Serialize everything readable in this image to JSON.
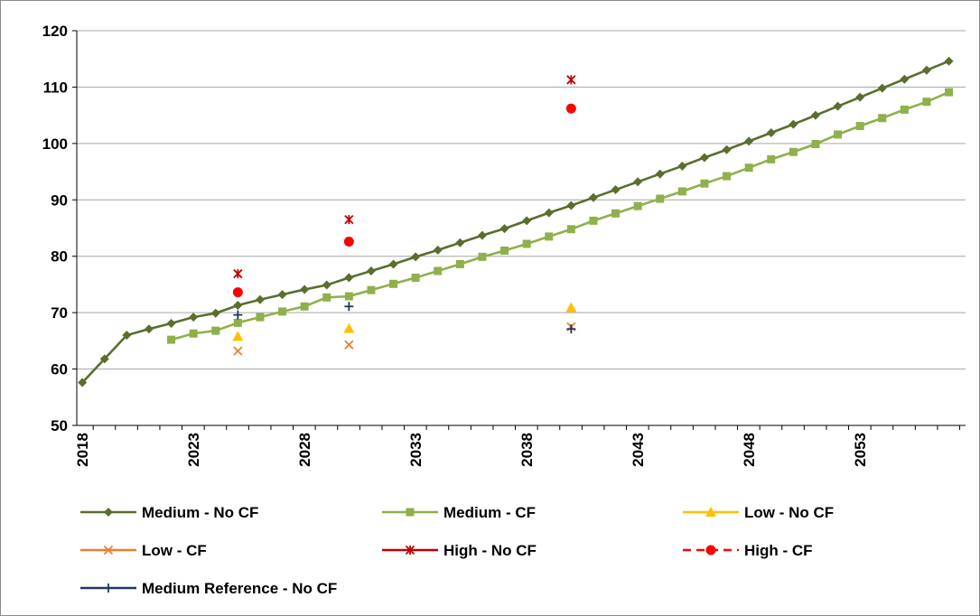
{
  "chart_data": {
    "type": "line",
    "title": "",
    "xlabel": "",
    "ylabel": "",
    "xlim": [
      2018,
      2057
    ],
    "ylim": [
      50,
      120
    ],
    "grid": true,
    "legend_position": "bottom",
    "yticks": [
      50,
      60,
      70,
      80,
      90,
      100,
      110,
      120
    ],
    "xticks": [
      2018,
      2023,
      2028,
      2033,
      2038,
      2043,
      2048,
      2053
    ],
    "colors": {
      "medium_no_cf": "#5a6e2d",
      "medium_cf": "#8fb04a",
      "low_no_cf": "#ffc000",
      "low_cf": "#ed7d31",
      "high_no_cf": "#c00000",
      "high_cf": "#ff0000",
      "medium_reference": "#1f3864"
    },
    "series": [
      {
        "name": "Medium - No CF",
        "marker": "diamond",
        "line": "solid",
        "color": "#5a6e2d",
        "x": [
          2018,
          2019,
          2020,
          2021,
          2022,
          2023,
          2024,
          2025,
          2026,
          2027,
          2028,
          2029,
          2030,
          2031,
          2032,
          2033,
          2034,
          2035,
          2036,
          2037,
          2038,
          2039,
          2040,
          2041,
          2042,
          2043,
          2044,
          2045,
          2046,
          2047,
          2048,
          2049,
          2050,
          2051,
          2052,
          2053,
          2054,
          2055,
          2056,
          2057
        ],
        "y": [
          57.6,
          61.8,
          66.0,
          67.1,
          68.1,
          69.2,
          69.9,
          71.3,
          72.3,
          73.2,
          74.1,
          74.9,
          76.2,
          77.4,
          78.6,
          79.9,
          81.1,
          82.4,
          83.7,
          84.9,
          86.3,
          87.7,
          89.0,
          90.4,
          91.8,
          93.2,
          94.6,
          96.0,
          97.5,
          98.9,
          100.4,
          101.9,
          103.4,
          105.0,
          106.6,
          108.2,
          109.8,
          111.4,
          113.0,
          114.6
        ]
      },
      {
        "name": "Medium - CF",
        "marker": "square",
        "line": "solid",
        "color": "#8fb04a",
        "x": [
          2022,
          2023,
          2024,
          2025,
          2026,
          2027,
          2028,
          2029,
          2030,
          2031,
          2032,
          2033,
          2034,
          2035,
          2036,
          2037,
          2038,
          2039,
          2040,
          2041,
          2042,
          2043,
          2044,
          2045,
          2046,
          2047,
          2048,
          2049,
          2050,
          2051,
          2052,
          2053,
          2054,
          2055,
          2056,
          2057
        ],
        "y": [
          65.2,
          66.3,
          66.8,
          68.2,
          69.2,
          70.2,
          71.1,
          72.7,
          72.9,
          74.0,
          75.1,
          76.2,
          77.4,
          78.6,
          79.9,
          81.0,
          82.2,
          83.5,
          84.8,
          86.3,
          87.6,
          88.9,
          90.2,
          91.5,
          92.9,
          94.2,
          95.7,
          97.2,
          98.5,
          99.9,
          101.6,
          103.1,
          104.5,
          106.0,
          107.4,
          109.1
        ]
      },
      {
        "name": "Low - No CF",
        "marker": "triangle",
        "line": "solid",
        "color": "#ffc000",
        "x": [
          2025,
          2030,
          2040
        ],
        "y": [
          65.8,
          67.2,
          70.9
        ]
      },
      {
        "name": "Low - CF",
        "marker": "x",
        "line": "solid",
        "color": "#ed7d31",
        "x": [
          2025,
          2030,
          2040
        ],
        "y": [
          63.2,
          64.3,
          67.5
        ]
      },
      {
        "name": "High - No CF",
        "marker": "star",
        "line": "solid",
        "color": "#c00000",
        "x": [
          2025,
          2030,
          2040
        ],
        "y": [
          76.9,
          86.5,
          111.3
        ]
      },
      {
        "name": "High - CF",
        "marker": "circle",
        "line": "dashed",
        "color": "#ff0000",
        "x": [
          2025,
          2030,
          2040
        ],
        "y": [
          73.6,
          82.6,
          106.2
        ]
      },
      {
        "name": "Medium Reference - No CF",
        "marker": "plus",
        "line": "solid",
        "color": "#1f3864",
        "x": [
          2025,
          2030,
          2040
        ],
        "y": [
          69.6,
          71.1,
          67.1
        ]
      }
    ]
  }
}
